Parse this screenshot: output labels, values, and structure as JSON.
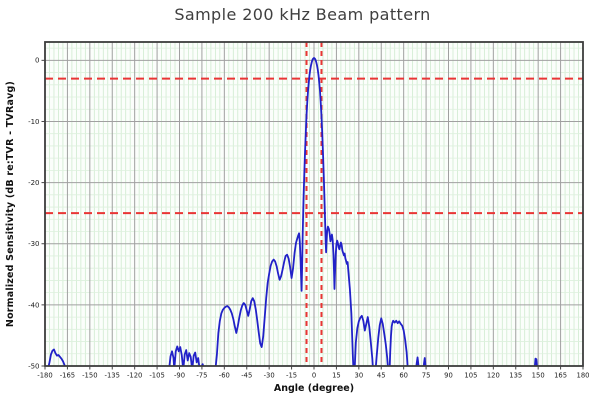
{
  "chart_data": {
    "type": "line",
    "title": "Sample 200 kHz Beam pattern",
    "xlabel": "Angle (degree)",
    "ylabel": "Normalized Sensitivity (dB re:TVR - TVRavg)",
    "xlim": [
      -180,
      180
    ],
    "ylim": [
      -50,
      3
    ],
    "x_ticks": [
      -180,
      -165,
      -150,
      -135,
      -120,
      -105,
      -90,
      -75,
      -60,
      -45,
      -30,
      -15,
      0,
      15,
      30,
      45,
      60,
      75,
      90,
      105,
      120,
      135,
      150,
      165,
      180
    ],
    "y_ticks": [
      0,
      -10,
      -20,
      -30,
      -40,
      -50
    ],
    "grid": {
      "major_x_step": 15,
      "major_y_step": 10,
      "minor_x_step": 3,
      "minor_y_step": 2,
      "on": true
    },
    "legend": {
      "visible": false
    },
    "reference_lines": {
      "horizontal_db": [
        -3,
        -25
      ],
      "vertical_deg": [
        -5,
        5
      ],
      "style": "dashed"
    },
    "colors": {
      "line": "#2121c8",
      "reference": "#e93535",
      "grid_major": "#a0a0a0",
      "grid_minor_v": "#cfeacf",
      "grid_minor_h": "#ddf0dd",
      "plot_bg": "#fbfefb",
      "frame": "#3c3c3c",
      "tick_text": "#222222"
    },
    "series": [
      {
        "name": "beam-pattern",
        "points": [
          [
            -180,
            -50.6
          ],
          [
            -178,
            -50.5
          ],
          [
            -177,
            -49.4
          ],
          [
            -176,
            -48.1
          ],
          [
            -175,
            -47.5
          ],
          [
            -174,
            -47.3
          ],
          [
            -173,
            -47.9
          ],
          [
            -172,
            -48.3
          ],
          [
            -171,
            -48.2
          ],
          [
            -170,
            -48.5
          ],
          [
            -169,
            -48.8
          ],
          [
            -168,
            -49.2
          ],
          [
            -167,
            -49.8
          ],
          [
            -166,
            -50.6
          ],
          [
            -97,
            -50.6
          ],
          [
            -96,
            -48.4
          ],
          [
            -95,
            -47.6
          ],
          [
            -94,
            -48.7
          ],
          [
            -93.5,
            -50.6
          ],
          [
            -92.5,
            -47.6
          ],
          [
            -91.5,
            -46.8
          ],
          [
            -90.5,
            -47.6
          ],
          [
            -89.5,
            -46.9
          ],
          [
            -88.5,
            -48.2
          ],
          [
            -87.5,
            -50.6
          ],
          [
            -86.5,
            -48.1
          ],
          [
            -85.5,
            -47.4
          ],
          [
            -84.5,
            -49.1
          ],
          [
            -83.5,
            -47.9
          ],
          [
            -82.5,
            -48.5
          ],
          [
            -81.5,
            -50.6
          ],
          [
            -80.5,
            -48.3
          ],
          [
            -79.5,
            -47.8
          ],
          [
            -78.5,
            -49.4
          ],
          [
            -77.5,
            -48.7
          ],
          [
            -76.5,
            -50.6
          ],
          [
            -74.5,
            -49.7
          ],
          [
            -73.5,
            -50.6
          ],
          [
            -66,
            -50.6
          ],
          [
            -65,
            -48.2
          ],
          [
            -64,
            -44.6
          ],
          [
            -63,
            -42.6
          ],
          [
            -62,
            -41.4
          ],
          [
            -61,
            -40.8
          ],
          [
            -60,
            -40.5
          ],
          [
            -59,
            -40.3
          ],
          [
            -58,
            -40.2
          ],
          [
            -57,
            -40.4
          ],
          [
            -56,
            -40.8
          ],
          [
            -55,
            -41.4
          ],
          [
            -54,
            -42.3
          ],
          [
            -53,
            -43.5
          ],
          [
            -52,
            -44.6
          ],
          [
            -51,
            -43.5
          ],
          [
            -50,
            -42.1
          ],
          [
            -49,
            -40.9
          ],
          [
            -48,
            -40.1
          ],
          [
            -47,
            -39.7
          ],
          [
            -46,
            -40
          ],
          [
            -45,
            -40.9
          ],
          [
            -44,
            -41.8
          ],
          [
            -43,
            -40.7
          ],
          [
            -42,
            -39.4
          ],
          [
            -41,
            -38.9
          ],
          [
            -40,
            -39.4
          ],
          [
            -39,
            -40.7
          ],
          [
            -38,
            -42.5
          ],
          [
            -37,
            -44.5
          ],
          [
            -36,
            -46.3
          ],
          [
            -35,
            -46.9
          ],
          [
            -34,
            -45.2
          ],
          [
            -33,
            -42.1
          ],
          [
            -32,
            -38.9
          ],
          [
            -31,
            -36.4
          ],
          [
            -30,
            -34.9
          ],
          [
            -29,
            -33.6
          ],
          [
            -28,
            -32.9
          ],
          [
            -27,
            -32.6
          ],
          [
            -26,
            -32.9
          ],
          [
            -25,
            -33.7
          ],
          [
            -24,
            -34.9
          ],
          [
            -23,
            -35.9
          ],
          [
            -22,
            -35.3
          ],
          [
            -21,
            -34.2
          ],
          [
            -20,
            -33
          ],
          [
            -19,
            -32
          ],
          [
            -18,
            -31.8
          ],
          [
            -17,
            -32.4
          ],
          [
            -16,
            -33.8
          ],
          [
            -15,
            -35.6
          ],
          [
            -14,
            -34
          ],
          [
            -13,
            -31.5
          ],
          [
            -12,
            -29.8
          ],
          [
            -11,
            -29
          ],
          [
            -10.5,
            -28.6
          ],
          [
            -10,
            -28.3
          ],
          [
            -9.5,
            -29.7
          ],
          [
            -9,
            -32.6
          ],
          [
            -8.6,
            -35.6
          ],
          [
            -8.3,
            -37.7
          ],
          [
            -8,
            -34.4
          ],
          [
            -7.6,
            -29
          ],
          [
            -7.2,
            -24.6
          ],
          [
            -7,
            -22.6
          ],
          [
            -6.5,
            -18.6
          ],
          [
            -6,
            -15
          ],
          [
            -5.5,
            -11.9
          ],
          [
            -5,
            -9
          ],
          [
            -4.5,
            -6.8
          ],
          [
            -4,
            -5
          ],
          [
            -3.5,
            -3.6
          ],
          [
            -3,
            -2.4
          ],
          [
            -2.5,
            -1.5
          ],
          [
            -2,
            -0.8
          ],
          [
            -1.5,
            -0.3
          ],
          [
            -1,
            0.1
          ],
          [
            -0.5,
            0.3
          ],
          [
            0,
            0.4
          ],
          [
            0.5,
            0.3
          ],
          [
            1,
            0.1
          ],
          [
            1.5,
            -0.3
          ],
          [
            2,
            -0.8
          ],
          [
            2.5,
            -1.5
          ],
          [
            3,
            -2.4
          ],
          [
            3.5,
            -3.6
          ],
          [
            4,
            -5
          ],
          [
            4.5,
            -6.9
          ],
          [
            5,
            -9.1
          ],
          [
            5.5,
            -11.9
          ],
          [
            6,
            -15.1
          ],
          [
            6.5,
            -18.6
          ],
          [
            7,
            -22.6
          ],
          [
            7.4,
            -26.1
          ],
          [
            7.8,
            -29.6
          ],
          [
            8.1,
            -31.4
          ],
          [
            8.4,
            -29.6
          ],
          [
            8.8,
            -27.9
          ],
          [
            9.3,
            -27.2
          ],
          [
            10,
            -27.6
          ],
          [
            10.5,
            -28.4
          ],
          [
            11,
            -29.6
          ],
          [
            11.5,
            -29.1
          ],
          [
            12,
            -28.5
          ],
          [
            12.5,
            -29.4
          ],
          [
            13,
            -31.6
          ],
          [
            13.4,
            -34.6
          ],
          [
            13.7,
            -37.4
          ],
          [
            14,
            -35.1
          ],
          [
            14.5,
            -31.9
          ],
          [
            15,
            -30.1
          ],
          [
            15.5,
            -29.5
          ],
          [
            16,
            -29.9
          ],
          [
            16.5,
            -30.6
          ],
          [
            17,
            -30.9
          ],
          [
            17.5,
            -30.3
          ],
          [
            18,
            -29.8
          ],
          [
            18.5,
            -30.2
          ],
          [
            19,
            -31.1
          ],
          [
            20,
            -31.9
          ],
          [
            20.5,
            -31.6
          ],
          [
            21,
            -32.4
          ],
          [
            22,
            -33.3
          ],
          [
            22.5,
            -33
          ],
          [
            23,
            -34.5
          ],
          [
            24,
            -37.4
          ],
          [
            25,
            -41.4
          ],
          [
            25.5,
            -44.9
          ],
          [
            26,
            -48.4
          ],
          [
            26.4,
            -50.6
          ],
          [
            27.2,
            -50.6
          ],
          [
            27.6,
            -48.3
          ],
          [
            28,
            -46.1
          ],
          [
            29,
            -43.8
          ],
          [
            30,
            -42.7
          ],
          [
            31,
            -42.1
          ],
          [
            32,
            -41.8
          ],
          [
            33,
            -42.6
          ],
          [
            34,
            -44.2
          ],
          [
            35,
            -43.1
          ],
          [
            36,
            -42
          ],
          [
            37,
            -43.6
          ],
          [
            38,
            -46.1
          ],
          [
            39,
            -48.7
          ],
          [
            39.5,
            -50.6
          ],
          [
            41.2,
            -50.6
          ],
          [
            42,
            -48.2
          ],
          [
            43,
            -45.4
          ],
          [
            44,
            -43.3
          ],
          [
            45,
            -42.2
          ],
          [
            46,
            -43.1
          ],
          [
            47,
            -44.7
          ],
          [
            48,
            -46.4
          ],
          [
            49,
            -48.7
          ],
          [
            49.6,
            -50.6
          ],
          [
            50.6,
            -50.6
          ],
          [
            51,
            -47.7
          ],
          [
            51.5,
            -45.1
          ],
          [
            52,
            -43.5
          ],
          [
            52.5,
            -42.9
          ],
          [
            53,
            -42.6
          ],
          [
            54,
            -42.9
          ],
          [
            55,
            -42.6
          ],
          [
            56,
            -43
          ],
          [
            57,
            -42.7
          ],
          [
            58,
            -43.1
          ],
          [
            59,
            -43.4
          ],
          [
            60,
            -44.2
          ],
          [
            61,
            -45.7
          ],
          [
            62,
            -47.8
          ],
          [
            62.8,
            -50.6
          ],
          [
            68.2,
            -50.6
          ],
          [
            68.7,
            -49.6
          ],
          [
            69.3,
            -48.6
          ],
          [
            69.9,
            -49.9
          ],
          [
            70.3,
            -50.6
          ],
          [
            72.9,
            -50.6
          ],
          [
            73.5,
            -49.8
          ],
          [
            74.1,
            -48.7
          ],
          [
            74.7,
            -50.2
          ],
          [
            75.1,
            -50.6
          ],
          [
            147.6,
            -50.6
          ],
          [
            148.2,
            -48.8
          ],
          [
            148.8,
            -48.9
          ],
          [
            149.4,
            -50.6
          ],
          [
            180,
            -50.6
          ]
        ]
      }
    ]
  }
}
